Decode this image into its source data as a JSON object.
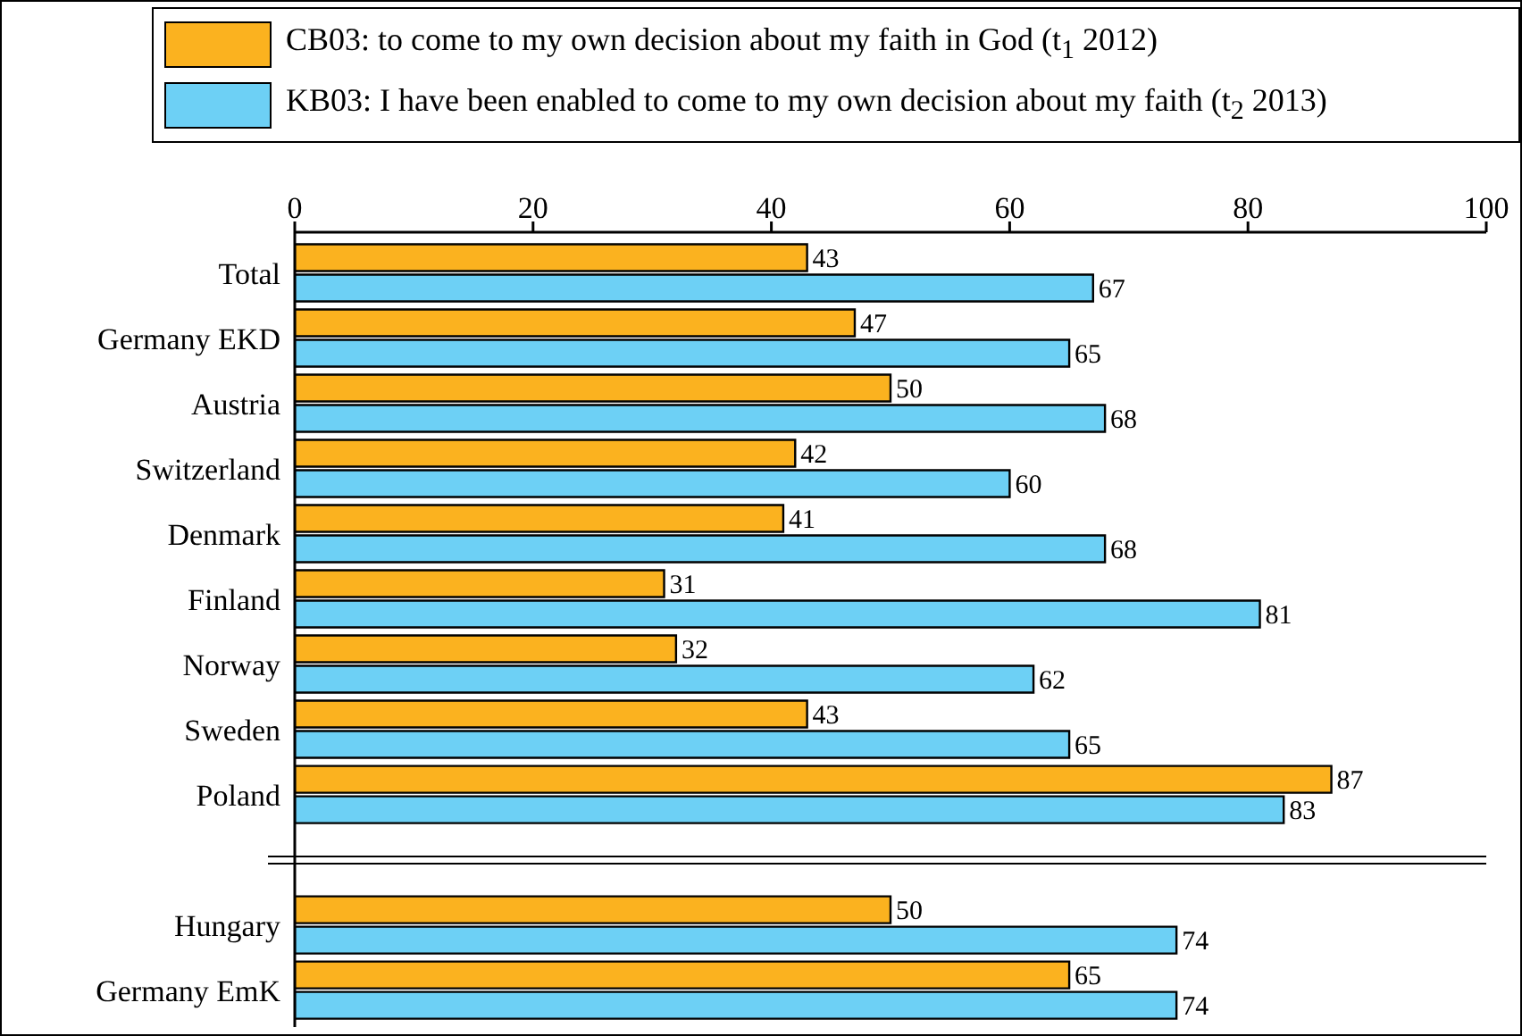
{
  "chart_data": {
    "type": "bar",
    "orientation": "horizontal",
    "categories": [
      "Total",
      "Germany EKD",
      "Austria",
      "Switzerland",
      "Denmark",
      "Finland",
      "Norway",
      "Sweden",
      "Poland",
      "Hungary",
      "Germany EmK"
    ],
    "series": [
      {
        "name": "CB03: to come to my own decision about my faith in God  (t$_{1}$ 2012)",
        "color": "#fbb21f",
        "values": [
          43,
          47,
          50,
          42,
          41,
          31,
          32,
          43,
          87,
          50,
          65
        ]
      },
      {
        "name": "KB03: I have been enabled to come to my own decision about my faith  (t$_{2}$ 2013)",
        "color": "#6dd0f5",
        "values": [
          67,
          65,
          68,
          60,
          68,
          81,
          62,
          65,
          83,
          74,
          74
        ]
      }
    ],
    "xlim": [
      0,
      100
    ],
    "xticks": [
      0,
      20,
      40,
      60,
      80,
      100
    ],
    "data_labels": true,
    "legend": "top",
    "grid": false
  }
}
